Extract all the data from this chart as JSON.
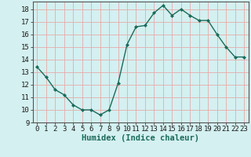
{
  "x": [
    0,
    1,
    2,
    3,
    4,
    5,
    6,
    7,
    8,
    9,
    10,
    11,
    12,
    13,
    14,
    15,
    16,
    17,
    18,
    19,
    20,
    21,
    22,
    23
  ],
  "y": [
    13.4,
    12.6,
    11.6,
    11.2,
    10.4,
    10.0,
    10.0,
    9.6,
    10.0,
    12.1,
    15.2,
    16.6,
    16.7,
    17.7,
    18.3,
    17.5,
    18.0,
    17.5,
    17.1,
    17.1,
    16.0,
    15.0,
    14.2,
    14.2
  ],
  "line_color": "#1a6b5a",
  "marker": "D",
  "marker_size": 2.5,
  "background_color": "#d4f0f0",
  "grid_color": "#e8aaaa",
  "xlabel": "Humidex (Indice chaleur)",
  "xlim": [
    -0.5,
    23.5
  ],
  "ylim": [
    9,
    18.6
  ],
  "yticks": [
    9,
    10,
    11,
    12,
    13,
    14,
    15,
    16,
    17,
    18
  ],
  "xticks": [
    0,
    1,
    2,
    3,
    4,
    5,
    6,
    7,
    8,
    9,
    10,
    11,
    12,
    13,
    14,
    15,
    16,
    17,
    18,
    19,
    20,
    21,
    22,
    23
  ],
  "tick_label_fontsize": 6.5,
  "xlabel_fontsize": 7.5,
  "line_width": 1.0
}
